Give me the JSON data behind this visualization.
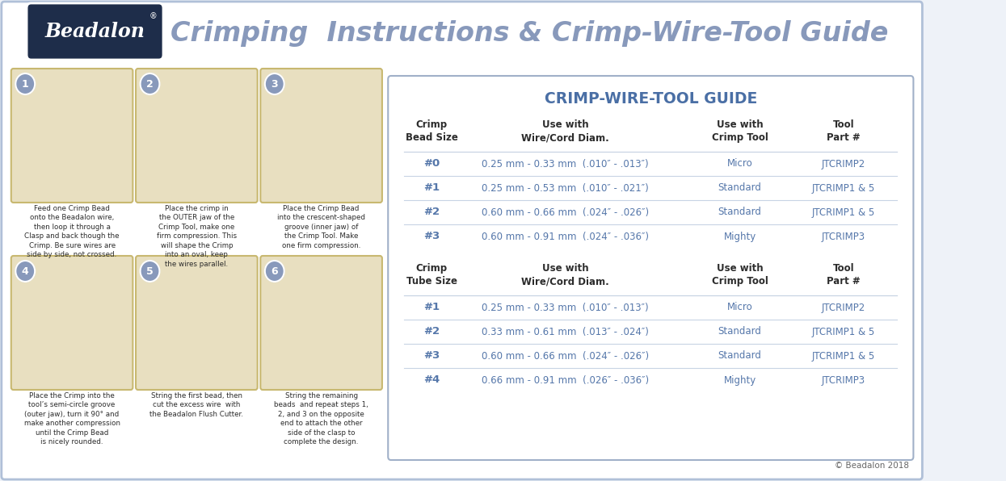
{
  "title": "Crimping  Instructions & Crimp-Wire-Tool Guide",
  "beadalon_text": "Beadalon®",
  "table_title": "CRIMP-WIRE-TOOL GUIDE",
  "table_title_color": "#4a6fa5",
  "header_color": "#2c2c2c",
  "data_color": "#5577aa",
  "line_color": "#c8d4e4",
  "bead_section_header": [
    "Crimp\nBead Size",
    "Use with\nWire/Cord Diam.",
    "Use with\nCrimp Tool",
    "Tool\nPart #"
  ],
  "bead_rows": [
    [
      "#0",
      "0.25 mm - 0.33 mm  (.010″ - .013″)",
      "Micro",
      "JTCRIMP2"
    ],
    [
      "#1",
      "0.25 mm - 0.53 mm  (.010″ - .021″)",
      "Standard",
      "JTCRIMP1 & 5"
    ],
    [
      "#2",
      "0.60 mm - 0.66 mm  (.024″ - .026″)",
      "Standard",
      "JTCRIMP1 & 5"
    ],
    [
      "#3",
      "0.60 mm - 0.91 mm  (.024″ - .036″)",
      "Mighty",
      "JTCRIMP3"
    ]
  ],
  "tube_section_header": [
    "Crimp\nTube Size",
    "Use with\nWire/Cord Diam.",
    "Use with\nCrimp Tool",
    "Tool\nPart #"
  ],
  "tube_rows": [
    [
      "#1",
      "0.25 mm - 0.33 mm  (.010″ - .013″)",
      "Micro",
      "JTCRIMP2"
    ],
    [
      "#2",
      "0.33 mm - 0.61 mm  (.013″ - .024″)",
      "Standard",
      "JTCRIMP1 & 5"
    ],
    [
      "#3",
      "0.60 mm - 0.66 mm  (.024″ - .026″)",
      "Standard",
      "JTCRIMP1 & 5"
    ],
    [
      "#4",
      "0.66 mm - 0.91 mm  (.026″ - .036″)",
      "Mighty",
      "JTCRIMP3"
    ]
  ],
  "instruction_texts": [
    "Feed one Crimp Bead\nonto the Beadalon wire,\nthen loop it through a\nClasp and back though the\nCrimp. Be sure wires are\nside by side, not crossed.",
    "Place the crimp in\nthe OUTER jaw of the\nCrimp Tool, make one\nfirm compression. This\nwill shape the Crimp\ninto an oval, keep\nthe wires parallel.",
    "Place the Crimp Bead\ninto the crescent-shaped\ngroove (inner jaw) of\nthe Crimp Tool. Make\none firm compression.",
    "Place the Crimp into the\ntool’s semi-circle groove\n(outer jaw), turn it 90° and\nmake another compression\nuntil the Crimp Bead\nis nicely rounded.",
    "String the first bead, then\ncut the excess wire  with\nthe Beadalon Flush Cutter.",
    "String the remaining\nbeads  and repeat steps 1,\n2, and 3 on the opposite\nend to attach the other\nside of the clasp to\ncomplete the design."
  ],
  "copyright": "© Beadalon 2018",
  "step_numbers": [
    "1",
    "2",
    "3",
    "4",
    "5",
    "6"
  ],
  "image_placeholder_color": "#e8dfc0",
  "image_border_color": "#c8b870",
  "step_circle_color": "#8899bb",
  "title_color": "#8899bb",
  "badge_color": "#1e2d4a",
  "outer_border_color": "#b0c0d8",
  "table_border_color": "#a0b0c8"
}
